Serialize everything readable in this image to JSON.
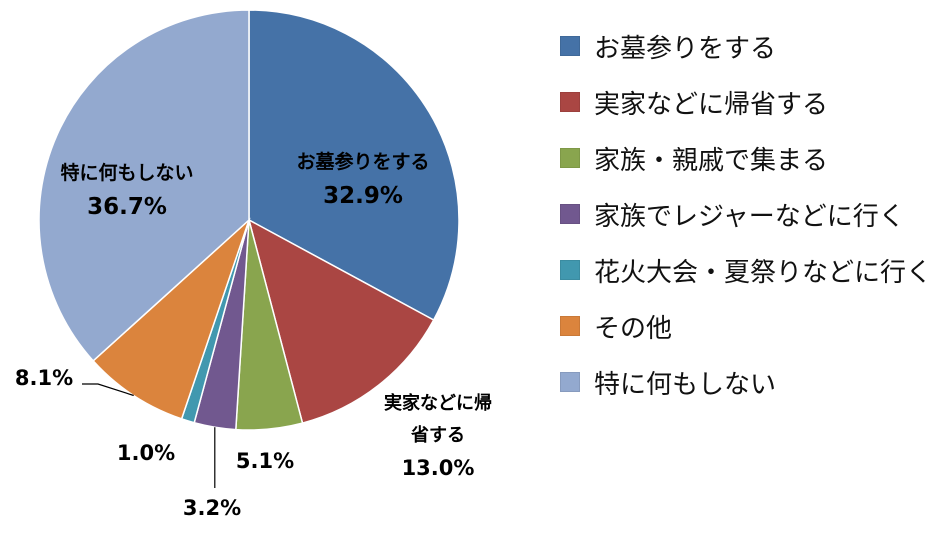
{
  "chart_data": {
    "type": "pie",
    "categories": [
      "お墓参りをする",
      "実家などに帰省する",
      "家族・親戚で集まる",
      "家族でレジャーなどに行く",
      "花火大会・夏祭りなどに行く",
      "その他",
      "特に何もしない"
    ],
    "values": [
      32.9,
      13.0,
      5.1,
      3.2,
      1.0,
      8.1,
      36.7
    ],
    "value_labels": [
      "32.9%",
      "13.0%",
      "5.1%",
      "3.2%",
      "1.0%",
      "8.1%",
      "36.7%"
    ],
    "slice_labels": [
      "お墓参りをする",
      "実家などに帰省する",
      "",
      "",
      "",
      "",
      "特に何もしない"
    ],
    "colors": [
      "#4572A7",
      "#AA4643",
      "#89A54E",
      "#71588F",
      "#4198AF",
      "#DB843D",
      "#93A9CF"
    ],
    "legend_position": "right"
  }
}
